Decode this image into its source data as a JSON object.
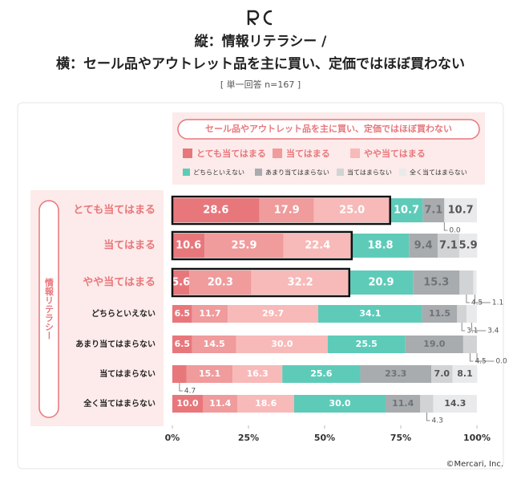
{
  "chart_data": {
    "type": "bar",
    "orientation": "horizontal",
    "stacked": true,
    "title": [
      "縦：情報リテラシー /",
      "横：セール品やアウトレット品を主に買い、定価ではほぼ買わない"
    ],
    "subtitle": "[ 単一回答 n=167 ]",
    "legend_title": "セール品やアウトレット品を主に買い、定価ではほぼ買わない",
    "y_label": "情報リテラシー",
    "footer": "©Mercari, Inc.",
    "categories": [
      "とても当てはまる",
      "当てはまる",
      "やや当てはまる",
      "どちらといえない",
      "あまり当てはまらない",
      "当てはまらない",
      "全く当てはまらない"
    ],
    "series": [
      {
        "name": "とても当てはまる",
        "color": "#e8777c",
        "values": [
          28.6,
          10.6,
          5.6,
          6.5,
          6.5,
          4.7,
          10.0
        ],
        "value_labels": [
          "28.6",
          "10.6",
          "5.6",
          "6.5",
          "6.5",
          "4.7",
          "10.0"
        ]
      },
      {
        "name": "当てはまる",
        "color": "#f09b9c",
        "values": [
          17.9,
          25.9,
          20.3,
          11.7,
          14.5,
          15.1,
          11.4
        ],
        "value_labels": [
          "17.9",
          "25.9",
          "20.3",
          "11.7",
          "14.5",
          "15.1",
          "11.4"
        ]
      },
      {
        "name": "やや当てはまる",
        "color": "#f8b9b9",
        "values": [
          25.0,
          22.4,
          32.2,
          29.7,
          30.0,
          16.3,
          18.6
        ],
        "value_labels": [
          "25.0",
          "22.4",
          "32.2",
          "29.7",
          "30.0",
          "16.3",
          "18.6"
        ]
      },
      {
        "name": "どちらといえない",
        "color": "#5ecbb9",
        "values": [
          10.7,
          18.8,
          20.9,
          34.1,
          25.5,
          25.6,
          30.0
        ],
        "value_labels": [
          "10.7",
          "18.8",
          "20.9",
          "34.1",
          "25.5",
          "25.6",
          "30.0"
        ]
      },
      {
        "name": "あまり当てはまらない",
        "color": "#a9acaf",
        "values": [
          7.1,
          9.4,
          15.3,
          11.5,
          19.0,
          23.3,
          11.4
        ],
        "value_labels": [
          "7.1",
          "9.4",
          "15.3",
          "11.5",
          "19.0",
          "23.3",
          "11.4"
        ]
      },
      {
        "name": "当てはまらない",
        "color": "#d2d3d5",
        "values": [
          0.0,
          7.1,
          4.5,
          3.1,
          4.5,
          7.0,
          4.3
        ],
        "value_labels": [
          "0.0",
          "7.1",
          "4.5",
          "3.1",
          "4.5",
          "7.0",
          "4.3"
        ]
      },
      {
        "name": "全く当てはまらない",
        "color": "#e9eaeb",
        "values": [
          10.7,
          5.9,
          1.1,
          3.4,
          0.0,
          8.1,
          14.3
        ],
        "value_labels": [
          "10.7",
          "5.9",
          "1.1",
          "3.4",
          "0.0",
          "8.1",
          "14.3"
        ]
      }
    ],
    "xlim": [
      0,
      100
    ],
    "xticks": [
      {
        "value": 0,
        "label": "0%"
      },
      {
        "value": 25,
        "label": "25%"
      },
      {
        "value": 50,
        "label": "50%"
      },
      {
        "value": 75,
        "label": "75%"
      },
      {
        "value": 100,
        "label": "100%"
      }
    ]
  }
}
